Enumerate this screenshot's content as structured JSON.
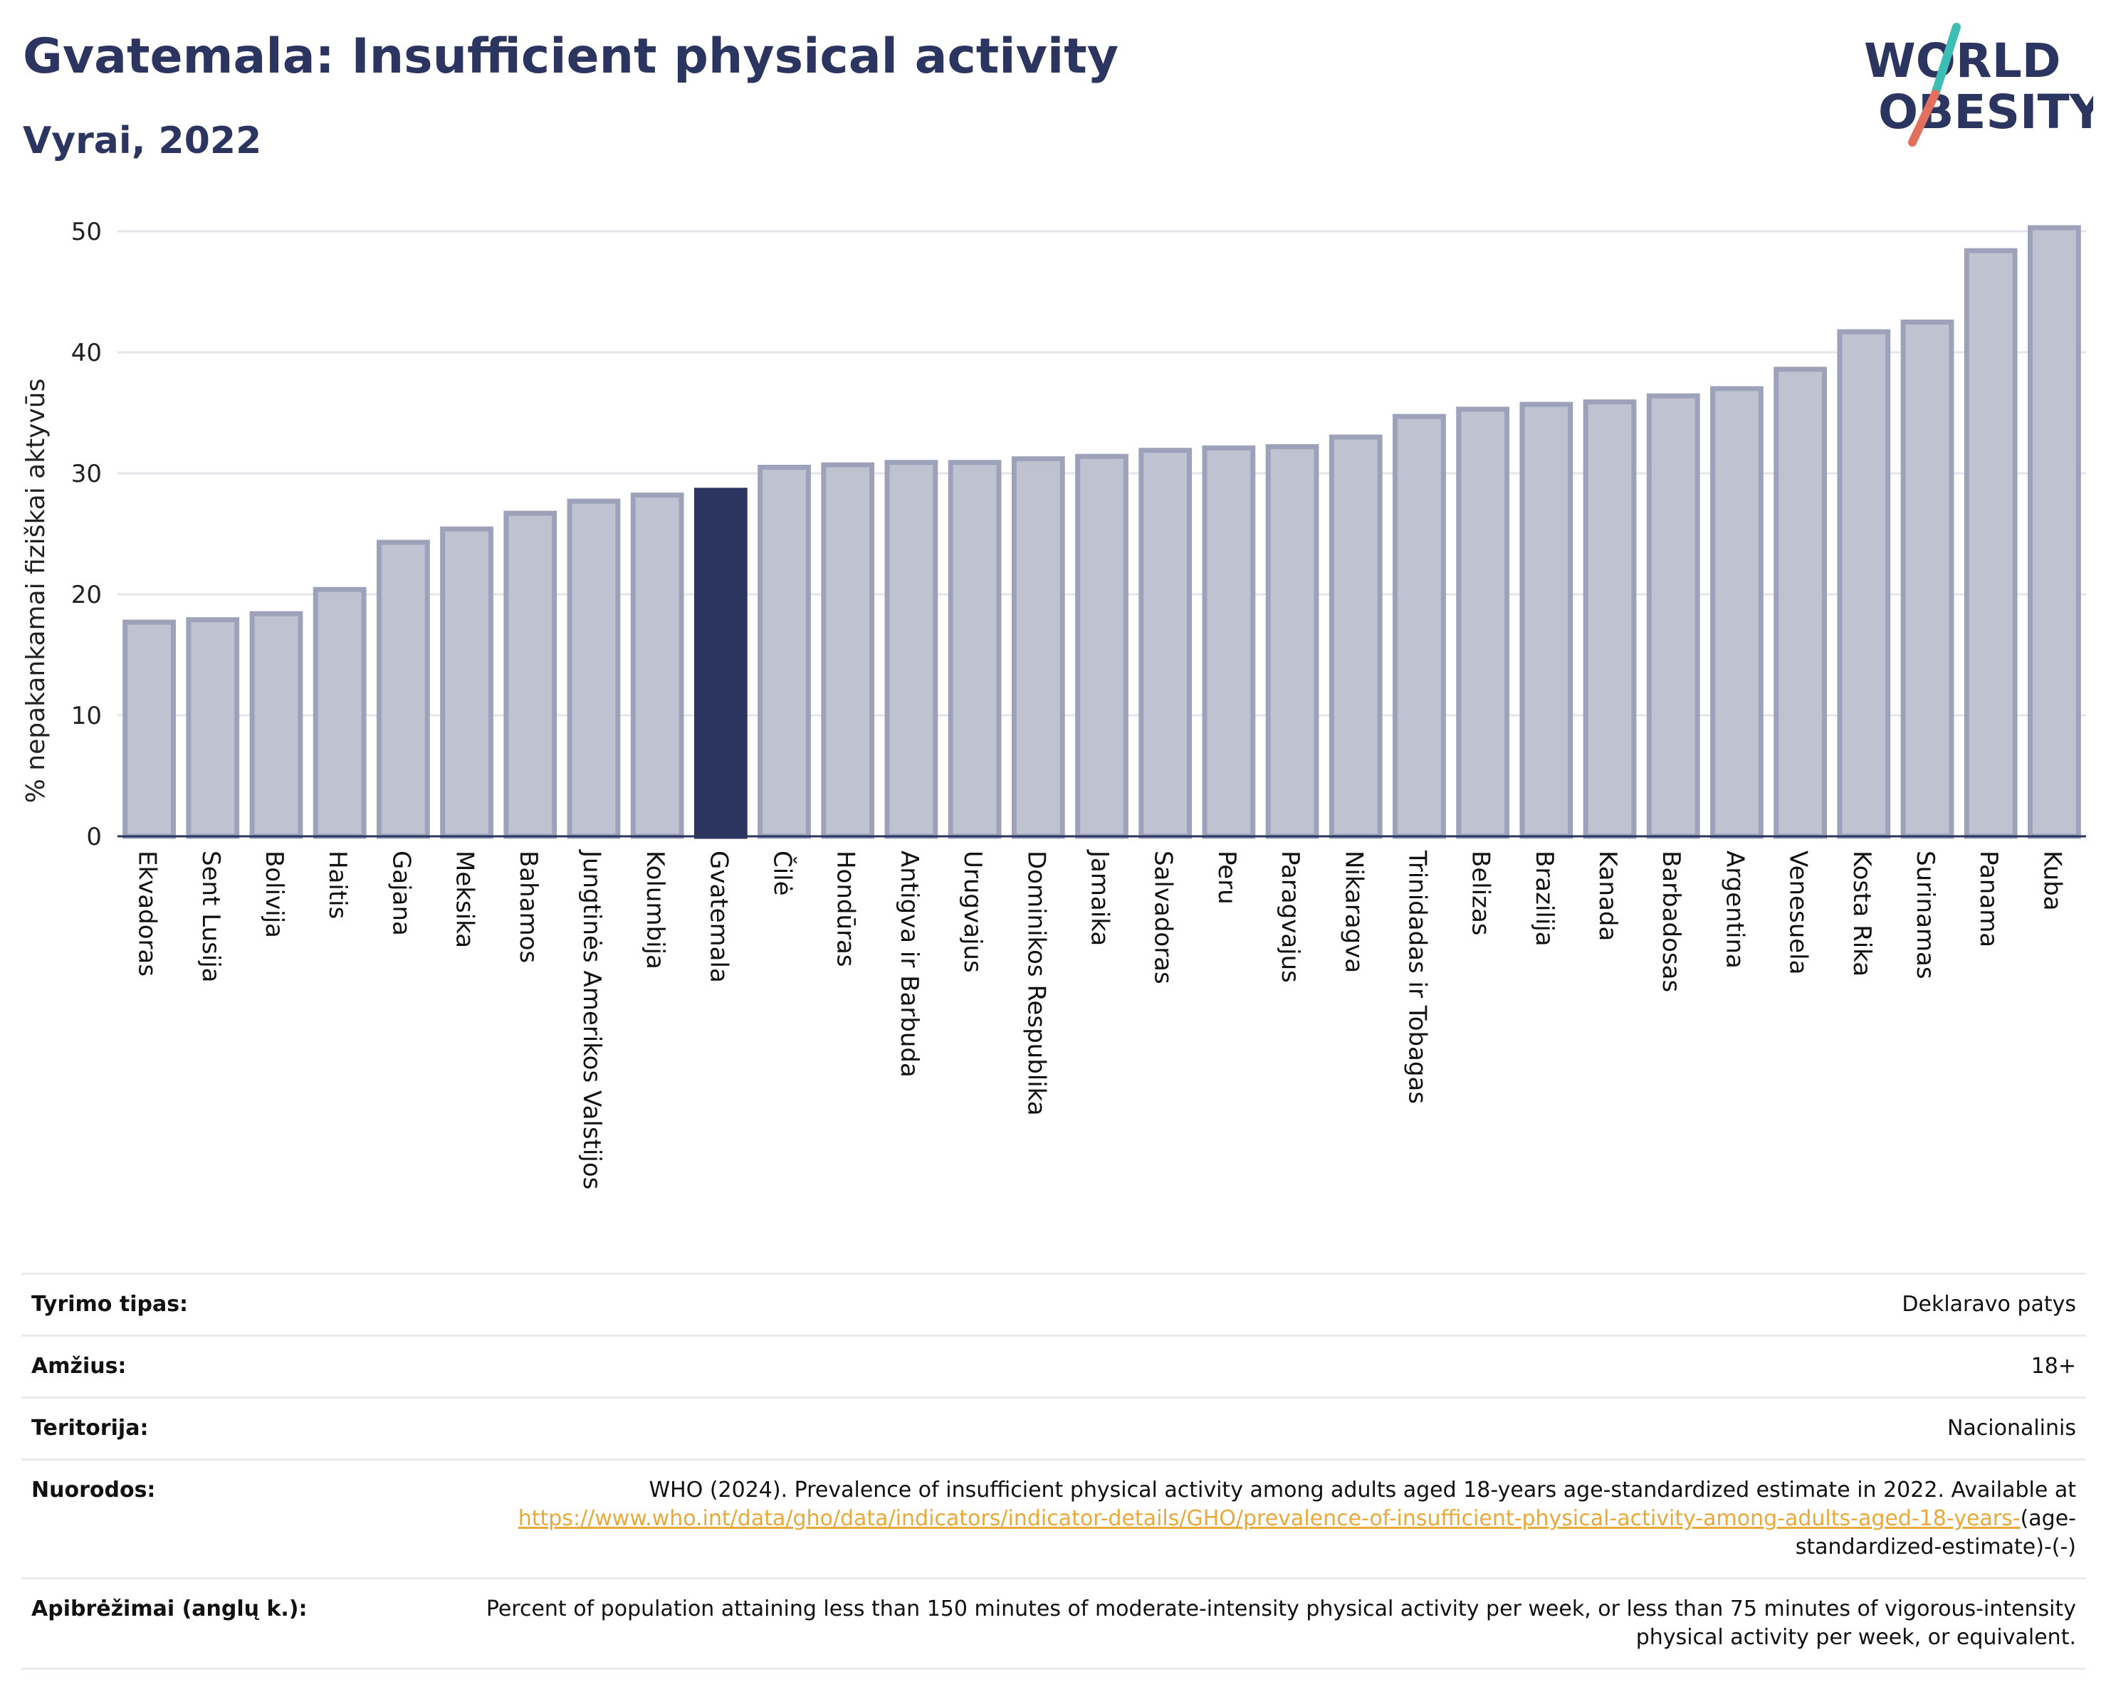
{
  "header": {
    "title": "Gvatemala: Insufficient physical activity",
    "subtitle": "Vyrai, 2022"
  },
  "logo": {
    "line1": "WORLD",
    "line2": "OBESITY",
    "icon": "world-obesity-logo"
  },
  "colors": {
    "bar": "#bfc2d1",
    "bar_border": "#9da2ba",
    "highlight": "#2b3560",
    "text": "#2b3560",
    "link": "#e8a93a",
    "logo_slash_top": "#3dbdb4",
    "logo_slash_bottom": "#e36f5e"
  },
  "chart_data": {
    "type": "bar",
    "ylabel": "% nepakankamai fiziškai aktyvūs",
    "ylim": [
      0,
      50
    ],
    "yticks": [
      "0",
      "10",
      "20",
      "30",
      "40",
      "50"
    ],
    "grid": true,
    "highlight": "Gvatemala",
    "categories": [
      "Ekvadoras",
      "Sent Lusija",
      "Bolivija",
      "Haitis",
      "Gajana",
      "Meksika",
      "Bahamos",
      "Jungtinės Amerikos Valstijos",
      "Kolumbija",
      "Gvatemala",
      "Čilė",
      "Hondūras",
      "Antigva ir Barbuda",
      "Urugvajus",
      "Dominikos Respublika",
      "Jamaika",
      "Salvadoras",
      "Peru",
      "Paragvajus",
      "Nikaragva",
      "Trinidadas ir Tobagas",
      "Belizas",
      "Brazilija",
      "Kanada",
      "Barbadosas",
      "Argentina",
      "Venesuela",
      "Kosta Rika",
      "Surinamas",
      "Panama",
      "Kuba"
    ],
    "values": [
      17.7,
      17.9,
      18.4,
      20.4,
      24.3,
      25.4,
      26.7,
      27.7,
      28.2,
      28.6,
      30.5,
      30.7,
      30.9,
      30.9,
      31.2,
      31.4,
      31.9,
      32.1,
      32.2,
      33.0,
      34.7,
      35.3,
      35.7,
      35.9,
      36.4,
      37.0,
      38.6,
      41.7,
      42.5,
      48.4,
      50.3
    ]
  },
  "info": {
    "survey_type": {
      "label": "Tyrimo tipas:",
      "value": "Deklaravo patys"
    },
    "age": {
      "label": "Amžius:",
      "value": "18+"
    },
    "territory": {
      "label": "Teritorija:",
      "value": "Nacionalinis"
    },
    "references": {
      "label": "Nuorodos:",
      "text": "WHO (2024). Prevalence of insufficient physical activity among adults aged 18-years age-standardized estimate in 2022. Available at",
      "url": "https://www.who.int/data/gho/data/indicators/indicator-details/GHO/prevalence-of-insufficient-physical-activity-among-adults-aged-18-years-",
      "suffix": "(age-standardized-estimate)-(-)"
    },
    "definitions": {
      "label": "Apibrėžimai (anglų k.):",
      "value": "Percent of population attaining less than 150 minutes of moderate-intensity physical activity per week, or less than 75 minutes of vigorous-intensity physical activity per week, or equivalent."
    }
  }
}
